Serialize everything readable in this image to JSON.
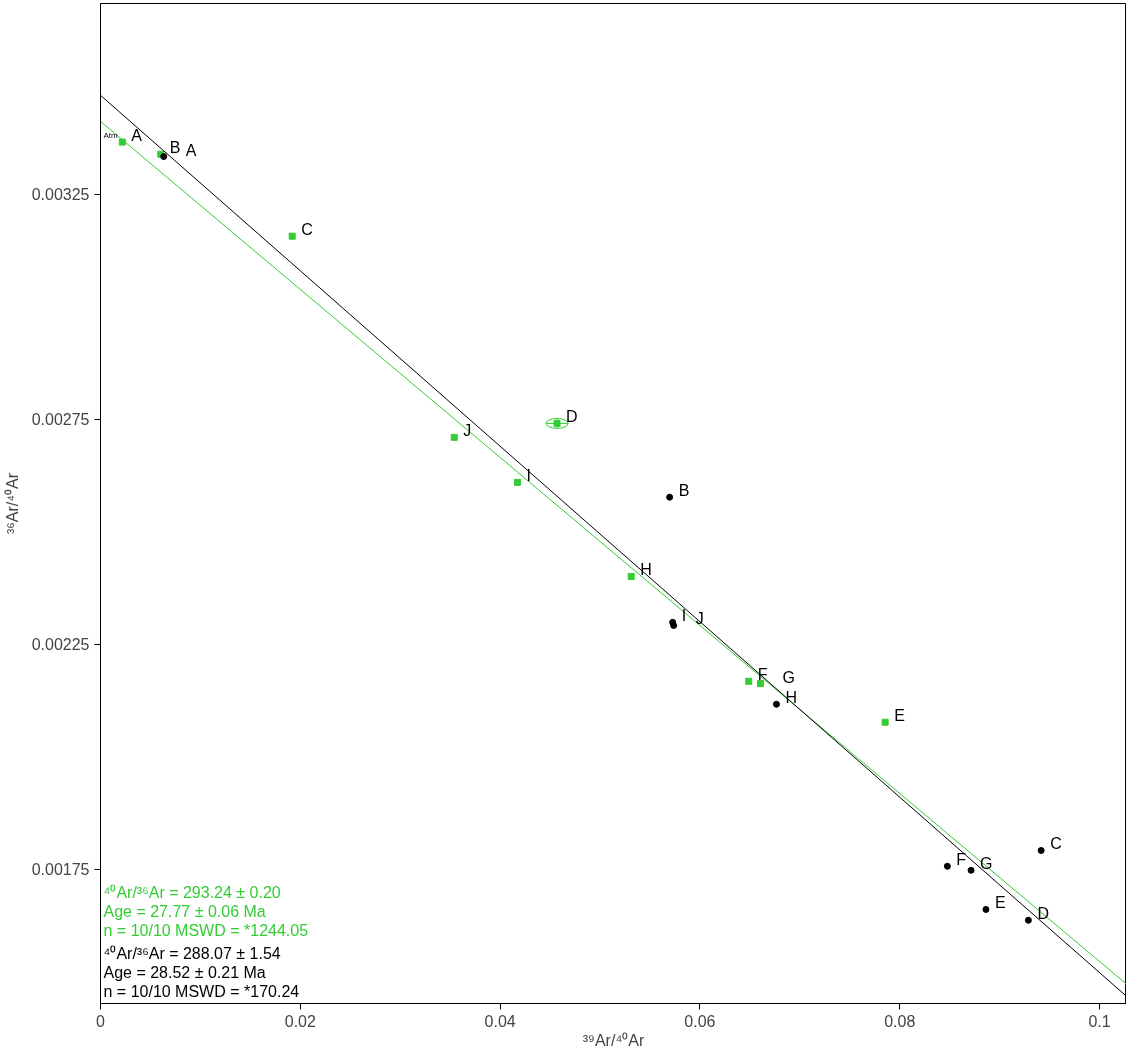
{
  "chart_data": {
    "type": "scatter",
    "xlabel": "³⁹Ar/⁴⁰Ar",
    "ylabel": "³⁶Ar/⁴⁰Ar",
    "xlim": [
      0,
      0.1027
    ],
    "ylim": [
      0.001452,
      0.003674
    ],
    "xticks": [
      0,
      0.02,
      0.04,
      0.06,
      0.08,
      0.1
    ],
    "yticks": [
      0.00175,
      0.00225,
      0.00275,
      0.00325
    ],
    "grid": false,
    "series": [
      {
        "color": "#33cc33",
        "marker": "square",
        "x": [
          0.00218,
          0.00603,
          0.01919,
          0.0457,
          0.07854,
          0.06489,
          0.06607,
          0.05312,
          0.04174,
          0.03541
        ],
        "values": [
          0.003366,
          0.003339,
          0.003157,
          0.002741,
          0.002077,
          0.002168,
          0.002163,
          0.002401,
          0.00261,
          0.00271
        ],
        "value_labels": [
          "A",
          "B",
          "C",
          "D",
          "E",
          "F",
          "G",
          "H",
          "I",
          "J"
        ],
        "xerrors": [
          null,
          null,
          null,
          0.0011,
          null,
          null,
          null,
          null,
          null,
          null
        ],
        "errors": [
          null,
          null,
          null,
          1.1e-05,
          null,
          null,
          null,
          null,
          null,
          null
        ]
      },
      {
        "color": "#000000",
        "marker": "circle",
        "x": [
          0.00633,
          0.05697,
          0.09416,
          0.09288,
          0.08863,
          0.08477,
          0.08714,
          0.06766,
          0.05727,
          0.05737
        ],
        "values": [
          0.003334,
          0.002577,
          0.001792,
          0.001637,
          0.001661,
          0.001757,
          0.001748,
          0.002117,
          0.002299,
          0.002292
        ],
        "value_labels": [
          "A",
          "B",
          "C",
          "D",
          "E",
          "F",
          "G",
          "H",
          "I",
          "J"
        ]
      },
      {
        "type": "line",
        "color": "#33cc33",
        "x": [
          0,
          0.1027
        ],
        "values": [
          0.003412,
          0.001495
        ]
      },
      {
        "type": "line",
        "color": "#000000",
        "x": [
          0,
          0.1027
        ],
        "values": [
          0.00347,
          0.001468
        ]
      }
    ],
    "annotations": [
      "Atm",
      "⁴⁰Ar/³⁶Ar = 293.24 ± 0.20",
      "Age = 27.77 ± 0.06 Ma",
      "n = 10/10 MSWD = *1244.05",
      "⁴⁰Ar/³⁶Ar = 288.07 ± 1.54",
      "Age = 28.52 ± 0.21 Ma",
      "n = 10/10 MSWD = *170.24"
    ]
  }
}
